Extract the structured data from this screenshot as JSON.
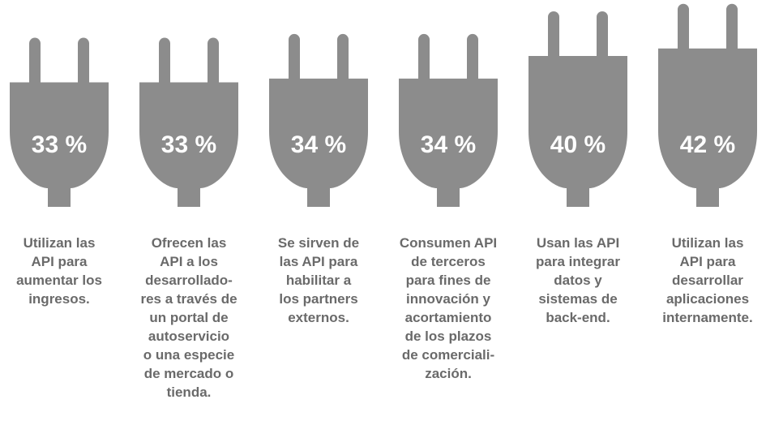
{
  "chart_data": {
    "type": "bar",
    "categories": [
      "Utilizan las\nAPI para\naumentar los\ningresos.",
      "Ofrecen las\nAPI a los\ndesarrollado-\nres a través de\nun portal de\nautoservicio\no una especie\nde mercado o\ntienda.",
      "Se sirven de\nlas API para\nhabilitar a\nlos partners\nexternos.",
      "Consumen API\nde terceros\npara fines de\ninnovación y\nacortamiento\nde los plazos\nde comerciali-\nzación.",
      "Usan las API\npara integrar\ndatos y\nsistemas de\nback-end.",
      "Utilizan las\nAPI para\ndesarrollar\naplicaciones\ninternamente."
    ],
    "values": [
      33,
      33,
      34,
      34,
      40,
      42
    ],
    "value_labels": [
      "33 %",
      "33 %",
      "34 %",
      "34 %",
      "40 %",
      "42 %"
    ],
    "color": "#8c8c8c"
  }
}
